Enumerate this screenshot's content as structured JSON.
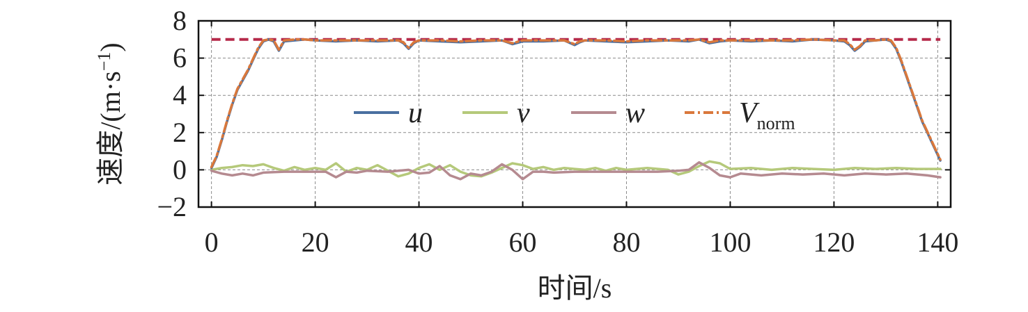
{
  "chart_data": {
    "type": "line",
    "xlabel": "时间/s",
    "ylabel_main": "速度/(m·s",
    "ylabel_sup": "−1",
    "ylabel_close": ")",
    "xlim": [
      -2.5,
      142.5
    ],
    "ylim": [
      -2,
      8
    ],
    "xticks": [
      0,
      20,
      40,
      60,
      80,
      100,
      120,
      140
    ],
    "yticks": [
      -2,
      0,
      2,
      4,
      6,
      8
    ],
    "ytick_labels": [
      "−2",
      "0",
      "2",
      "4",
      "6",
      "8"
    ],
    "grid": true,
    "legend_placement": "center",
    "reference_line": {
      "y": 7.0,
      "color": "#b5294a",
      "style": "dashed"
    },
    "series": [
      {
        "name": "u",
        "color": "#4a6fa0",
        "style": "solid",
        "x": [
          0,
          1,
          2,
          3,
          4,
          5,
          6,
          7,
          8,
          9,
          10,
          11,
          12,
          13,
          14,
          16,
          18,
          20,
          24,
          28,
          32,
          36,
          37,
          38,
          39,
          40,
          44,
          48,
          52,
          56,
          58,
          60,
          64,
          68,
          70,
          71,
          72,
          76,
          80,
          84,
          88,
          92,
          94,
          96,
          98,
          100,
          104,
          108,
          112,
          116,
          120,
          122,
          123,
          124,
          125,
          126,
          128,
          130,
          131,
          132,
          133,
          134,
          135,
          136,
          137,
          138,
          139,
          140,
          140.5
        ],
        "y": [
          0.1,
          0.7,
          1.6,
          2.6,
          3.5,
          4.3,
          4.8,
          5.3,
          5.9,
          6.5,
          6.9,
          7.0,
          6.9,
          6.4,
          6.9,
          6.95,
          7.0,
          6.95,
          6.9,
          6.95,
          6.9,
          6.95,
          6.8,
          6.5,
          6.8,
          6.95,
          6.9,
          6.85,
          6.9,
          6.95,
          6.75,
          6.9,
          6.9,
          6.95,
          6.7,
          6.85,
          6.95,
          6.9,
          6.85,
          6.9,
          6.95,
          6.9,
          7.0,
          6.8,
          6.9,
          6.95,
          6.9,
          6.95,
          6.9,
          7.0,
          6.95,
          6.9,
          6.7,
          6.4,
          6.6,
          6.9,
          6.95,
          7.0,
          6.9,
          6.5,
          5.8,
          5.0,
          4.2,
          3.4,
          2.6,
          2.0,
          1.4,
          0.8,
          0.5
        ]
      },
      {
        "name": "v",
        "color": "#b5c97a",
        "style": "solid",
        "x": [
          0,
          2,
          4,
          6,
          8,
          10,
          12,
          14,
          16,
          18,
          20,
          22,
          24,
          26,
          28,
          30,
          32,
          34,
          36,
          38,
          40,
          42,
          44,
          46,
          48,
          50,
          52,
          54,
          56,
          58,
          60,
          62,
          64,
          66,
          68,
          70,
          72,
          74,
          76,
          78,
          80,
          84,
          88,
          90,
          92,
          94,
          96,
          98,
          100,
          104,
          108,
          112,
          116,
          120,
          124,
          128,
          132,
          136,
          140.5
        ],
        "y": [
          0.0,
          0.1,
          0.15,
          0.25,
          0.2,
          0.3,
          0.1,
          -0.05,
          0.15,
          0.0,
          0.1,
          0.0,
          0.35,
          -0.1,
          0.1,
          0.0,
          0.25,
          -0.05,
          -0.35,
          -0.2,
          0.1,
          0.3,
          0.0,
          0.25,
          -0.1,
          -0.3,
          -0.35,
          -0.15,
          0.1,
          0.35,
          0.25,
          0.05,
          0.15,
          0.0,
          0.1,
          0.05,
          0.0,
          0.1,
          -0.05,
          0.1,
          0.0,
          0.1,
          0.0,
          -0.25,
          -0.1,
          0.2,
          0.45,
          0.35,
          0.05,
          0.1,
          0.0,
          0.1,
          0.05,
          0.0,
          0.1,
          0.05,
          0.1,
          0.05,
          0.05
        ]
      },
      {
        "name": "w",
        "color": "#b58a90",
        "style": "solid",
        "x": [
          0,
          2,
          4,
          6,
          8,
          10,
          14,
          18,
          22,
          24,
          26,
          28,
          30,
          34,
          38,
          40,
          42,
          44,
          46,
          48,
          50,
          52,
          54,
          56,
          58,
          60,
          62,
          64,
          66,
          70,
          74,
          78,
          82,
          86,
          90,
          92,
          94,
          96,
          98,
          100,
          102,
          106,
          110,
          114,
          118,
          122,
          126,
          130,
          134,
          138,
          140.5
        ],
        "y": [
          -0.05,
          -0.2,
          -0.3,
          -0.2,
          -0.3,
          -0.15,
          -0.1,
          -0.1,
          -0.1,
          -0.4,
          -0.1,
          -0.15,
          -0.05,
          -0.1,
          0.0,
          -0.2,
          -0.15,
          0.2,
          -0.3,
          -0.5,
          -0.2,
          -0.3,
          -0.1,
          0.3,
          0.0,
          -0.5,
          -0.1,
          -0.1,
          -0.15,
          -0.1,
          -0.1,
          -0.1,
          -0.1,
          -0.1,
          -0.05,
          0.0,
          0.4,
          0.1,
          -0.3,
          -0.4,
          -0.2,
          -0.3,
          -0.2,
          -0.25,
          -0.2,
          -0.3,
          -0.2,
          -0.25,
          -0.2,
          -0.3,
          -0.4
        ]
      },
      {
        "name": "V",
        "name_sub": "norm",
        "color": "#d9783c",
        "style": "dashdot",
        "x": [
          0,
          1,
          2,
          3,
          4,
          5,
          6,
          7,
          8,
          9,
          10,
          11,
          12,
          13,
          14,
          16,
          18,
          20,
          24,
          28,
          32,
          36,
          37,
          38,
          39,
          40,
          44,
          48,
          52,
          56,
          58,
          60,
          64,
          68,
          70,
          71,
          72,
          76,
          80,
          84,
          88,
          92,
          94,
          96,
          98,
          100,
          104,
          108,
          112,
          116,
          120,
          122,
          123,
          124,
          125,
          126,
          128,
          130,
          131,
          132,
          133,
          134,
          135,
          136,
          137,
          138,
          139,
          140,
          140.5
        ],
        "y": [
          0.15,
          0.75,
          1.65,
          2.65,
          3.55,
          4.35,
          4.85,
          5.35,
          5.95,
          6.55,
          6.95,
          7.0,
          6.95,
          6.45,
          6.95,
          7.0,
          7.0,
          6.95,
          6.95,
          6.95,
          6.95,
          6.95,
          6.85,
          6.55,
          6.85,
          6.95,
          6.95,
          6.9,
          6.95,
          6.95,
          6.8,
          6.95,
          6.95,
          6.95,
          6.75,
          6.9,
          6.95,
          6.95,
          6.9,
          6.95,
          6.95,
          6.95,
          7.0,
          6.85,
          6.95,
          6.95,
          6.95,
          6.95,
          6.95,
          7.0,
          6.95,
          6.95,
          6.75,
          6.45,
          6.65,
          6.95,
          6.95,
          7.0,
          6.95,
          6.55,
          5.85,
          5.05,
          4.25,
          3.45,
          2.65,
          2.05,
          1.45,
          0.85,
          0.55
        ]
      }
    ]
  }
}
